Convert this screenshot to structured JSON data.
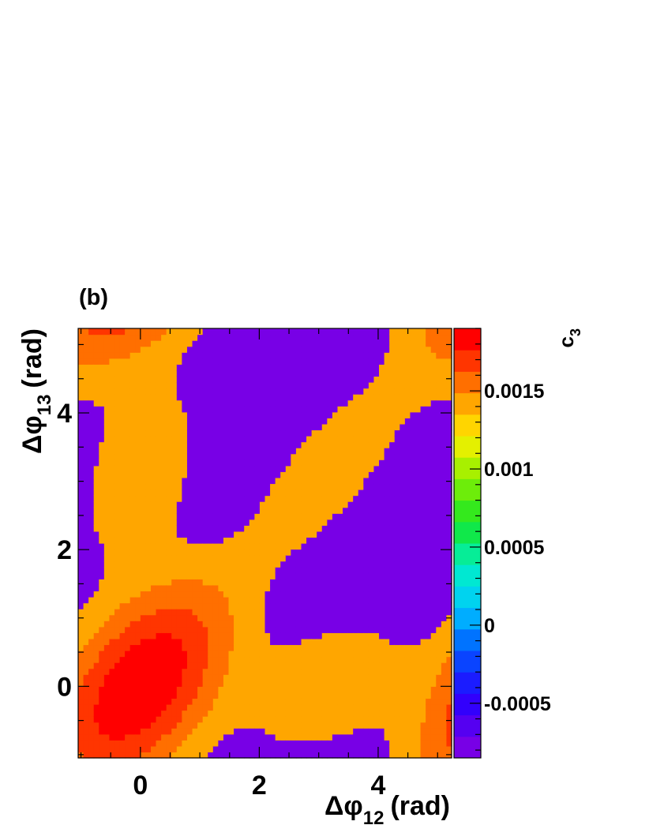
{
  "panel_label": "(b)",
  "chart_data": {
    "type": "heatmap",
    "xlabel": {
      "symbol": "Δφ",
      "sub": "12",
      "unit": "(rad)"
    },
    "ylabel": {
      "symbol": "Δφ",
      "sub": "13",
      "unit": "(rad)"
    },
    "zlabel": {
      "base": "c",
      "sub": "3"
    },
    "xlim": [
      -1.0472,
      5.236
    ],
    "ylim": [
      -1.0472,
      5.236
    ],
    "zlim": [
      -0.00085,
      0.0019
    ],
    "x_ticks": [
      {
        "value": 0,
        "label": "0"
      },
      {
        "value": 2,
        "label": "2"
      },
      {
        "value": 4,
        "label": "4"
      }
    ],
    "y_ticks": [
      {
        "value": 0,
        "label": "0"
      },
      {
        "value": 2,
        "label": "2"
      },
      {
        "value": 4,
        "label": "4"
      }
    ],
    "z_ticks": [
      {
        "value": -0.0005,
        "label": "-0.0005"
      },
      {
        "value": 0,
        "label": "0"
      },
      {
        "value": 0.0005,
        "label": "0.0005"
      },
      {
        "value": 0.001,
        "label": "0.001"
      },
      {
        "value": 0.0015,
        "label": "0.0015"
      }
    ],
    "grid": false,
    "bins": 72,
    "color_levels": 20,
    "pattern": {
      "major_peaks": [
        [
          0,
          0
        ],
        [
          3.1416,
          3.1416
        ],
        [
          0,
          3.1416
        ],
        [
          3.1416,
          0
        ]
      ],
      "minor_peaks": [
        [
          1.0472,
          2.0944
        ],
        [
          2.0944,
          1.0472
        ],
        [
          4.1888,
          2.0944
        ],
        [
          2.0944,
          4.1888
        ],
        [
          1.0472,
          5.236
        ],
        [
          4.1888,
          5.236
        ],
        [
          1.0472,
          -1.0472
        ],
        [
          4.1888,
          -1.0472
        ],
        [
          5.236,
          1.0472
        ],
        [
          5.236,
          4.1888
        ],
        [
          -1.0472,
          1.0472
        ],
        [
          -1.0472,
          4.1888
        ]
      ],
      "major_peak_value": 0.0019,
      "minor_peak_value": 0.00135,
      "background_value": -0.00085
    }
  }
}
